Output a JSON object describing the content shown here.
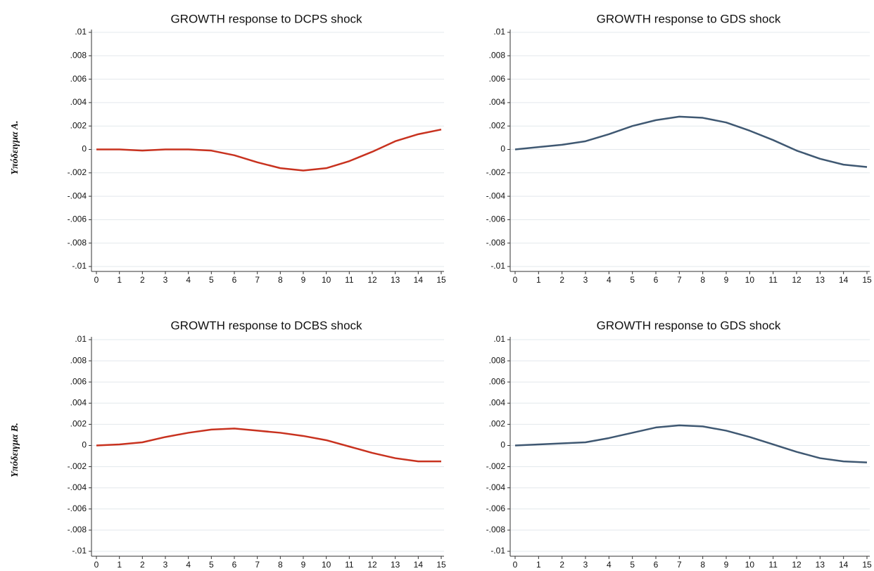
{
  "row_labels": [
    "Υπόδειγμα Α.",
    "Υπόδειγμα Β."
  ],
  "chart_data": [
    {
      "type": "line",
      "title": "GROWTH response to DCPS shock",
      "color": "#c8321f",
      "grid": true,
      "x": [
        0,
        1,
        2,
        3,
        4,
        5,
        6,
        7,
        8,
        9,
        10,
        11,
        12,
        13,
        14,
        15
      ],
      "values": [
        0,
        0,
        -0.0001,
        0,
        0,
        -0.0001,
        -0.0005,
        -0.0011,
        -0.0016,
        -0.0018,
        -0.0016,
        -0.001,
        -0.0002,
        0.0007,
        0.0013,
        0.0017
      ],
      "xlim": [
        0,
        15
      ],
      "xticks": [
        0,
        1,
        2,
        3,
        4,
        5,
        6,
        7,
        8,
        9,
        10,
        11,
        12,
        13,
        14,
        15
      ],
      "ylim": [
        -0.01,
        0.01
      ],
      "yticks": [
        {
          "value": -0.01,
          "label": "-.01"
        },
        {
          "value": -0.008,
          "label": "-.008"
        },
        {
          "value": -0.006,
          "label": "-.006"
        },
        {
          "value": -0.004,
          "label": "-.004"
        },
        {
          "value": -0.002,
          "label": "-.002"
        },
        0,
        {
          "value": 0.002,
          "label": ".002"
        },
        {
          "value": 0.004,
          "label": ".004"
        },
        {
          "value": 0.006,
          "label": ".006"
        },
        {
          "value": 0.008,
          "label": ".008"
        },
        {
          "value": 0.01,
          "label": ".01"
        }
      ]
    },
    {
      "type": "line",
      "title": "GROWTH response to GDS shock",
      "color": "#3f5872",
      "grid": true,
      "x": [
        0,
        1,
        2,
        3,
        4,
        5,
        6,
        7,
        8,
        9,
        10,
        11,
        12,
        13,
        14,
        15
      ],
      "values": [
        0,
        0.0002,
        0.0004,
        0.0007,
        0.0013,
        0.002,
        0.0025,
        0.0028,
        0.0027,
        0.0023,
        0.0016,
        0.0008,
        -0.0001,
        -0.0008,
        -0.0013,
        -0.0015
      ],
      "xlim": [
        0,
        15
      ],
      "xticks": [
        0,
        1,
        2,
        3,
        4,
        5,
        6,
        7,
        8,
        9,
        10,
        11,
        12,
        13,
        14,
        15
      ],
      "ylim": [
        -0.01,
        0.01
      ],
      "yticks": [
        {
          "value": -0.01,
          "label": "-.01"
        },
        {
          "value": -0.008,
          "label": "-.008"
        },
        {
          "value": -0.006,
          "label": "-.006"
        },
        {
          "value": -0.004,
          "label": "-.004"
        },
        {
          "value": -0.002,
          "label": "-.002"
        },
        0,
        {
          "value": 0.002,
          "label": ".002"
        },
        {
          "value": 0.004,
          "label": ".004"
        },
        {
          "value": 0.006,
          "label": ".006"
        },
        {
          "value": 0.008,
          "label": ".008"
        },
        {
          "value": 0.01,
          "label": ".01"
        }
      ]
    },
    {
      "type": "line",
      "title": "GROWTH response to DCBS shock",
      "color": "#c8321f",
      "grid": true,
      "x": [
        0,
        1,
        2,
        3,
        4,
        5,
        6,
        7,
        8,
        9,
        10,
        11,
        12,
        13,
        14,
        15
      ],
      "values": [
        0,
        0.0001,
        0.0003,
        0.0008,
        0.0012,
        0.0015,
        0.0016,
        0.0014,
        0.0012,
        0.0009,
        0.0005,
        -0.0001,
        -0.0007,
        -0.0012,
        -0.0015,
        -0.0015
      ],
      "xlim": [
        0,
        15
      ],
      "xticks": [
        0,
        1,
        2,
        3,
        4,
        5,
        6,
        7,
        8,
        9,
        10,
        11,
        12,
        13,
        14,
        15
      ],
      "ylim": [
        -0.01,
        0.01
      ],
      "yticks": [
        {
          "value": -0.01,
          "label": "-.01"
        },
        {
          "value": -0.008,
          "label": "-.008"
        },
        {
          "value": -0.006,
          "label": "-.006"
        },
        {
          "value": -0.004,
          "label": "-.004"
        },
        {
          "value": -0.002,
          "label": "-.002"
        },
        0,
        {
          "value": 0.002,
          "label": ".002"
        },
        {
          "value": 0.004,
          "label": ".004"
        },
        {
          "value": 0.006,
          "label": ".006"
        },
        {
          "value": 0.008,
          "label": ".008"
        },
        {
          "value": 0.01,
          "label": ".01"
        }
      ]
    },
    {
      "type": "line",
      "title": "GROWTH response to GDS shock",
      "color": "#3f5872",
      "grid": true,
      "x": [
        0,
        1,
        2,
        3,
        4,
        5,
        6,
        7,
        8,
        9,
        10,
        11,
        12,
        13,
        14,
        15
      ],
      "values": [
        0,
        0.0001,
        0.0002,
        0.0003,
        0.0007,
        0.0012,
        0.0017,
        0.0019,
        0.0018,
        0.0014,
        0.0008,
        0.0001,
        -0.0006,
        -0.0012,
        -0.0015,
        -0.0016
      ],
      "xlim": [
        0,
        15
      ],
      "xticks": [
        0,
        1,
        2,
        3,
        4,
        5,
        6,
        7,
        8,
        9,
        10,
        11,
        12,
        13,
        14,
        15
      ],
      "ylim": [
        -0.01,
        0.01
      ],
      "yticks": [
        {
          "value": -0.01,
          "label": "-.01"
        },
        {
          "value": -0.008,
          "label": "-.008"
        },
        {
          "value": -0.006,
          "label": "-.006"
        },
        {
          "value": -0.004,
          "label": "-.004"
        },
        {
          "value": -0.002,
          "label": "-.002"
        },
        0,
        {
          "value": 0.002,
          "label": ".002"
        },
        {
          "value": 0.004,
          "label": ".004"
        },
        {
          "value": 0.006,
          "label": ".006"
        },
        {
          "value": 0.008,
          "label": ".008"
        },
        {
          "value": 0.01,
          "label": ".01"
        }
      ]
    }
  ]
}
